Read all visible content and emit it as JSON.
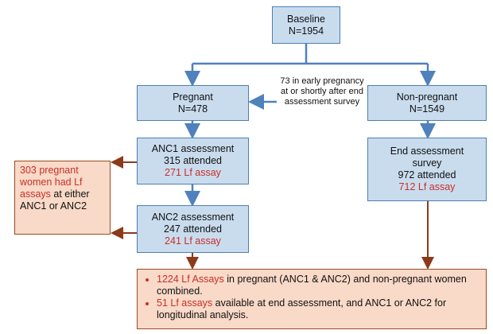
{
  "nodes": {
    "baseline": {
      "title": "Baseline",
      "count": "N=1954"
    },
    "pregnant": {
      "title": "Pregnant",
      "count": "N=478"
    },
    "non_pregnant": {
      "title": "Non-pregnant",
      "count": "N=1549"
    },
    "transfer_note": "73 in early pregnancy at or shortly after end assessment survey",
    "anc1": {
      "title": "ANC1 assessment",
      "attended": "315 attended",
      "assay": "271 Lf assay"
    },
    "anc2": {
      "title": "ANC2 assessment",
      "attended": "247 attended",
      "assay": "241 Lf assay"
    },
    "end_assessment": {
      "title": "End assessment survey",
      "attended": "972 attended",
      "assay": "712 Lf assay"
    },
    "pregnant_summary": {
      "highlight": "303 pregnant women had Lf assays",
      "rest": "at either ANC1 or ANC2"
    },
    "combined_summary": [
      {
        "highlight": "1224 Lf Assays",
        "rest": "in pregnant (ANC1 & ANC2) and non-pregnant women combined."
      },
      {
        "highlight": "51 Lf assays",
        "rest": "available at end assessment, and ANC1 or ANC2 for longitudinal analysis."
      }
    ]
  }
}
